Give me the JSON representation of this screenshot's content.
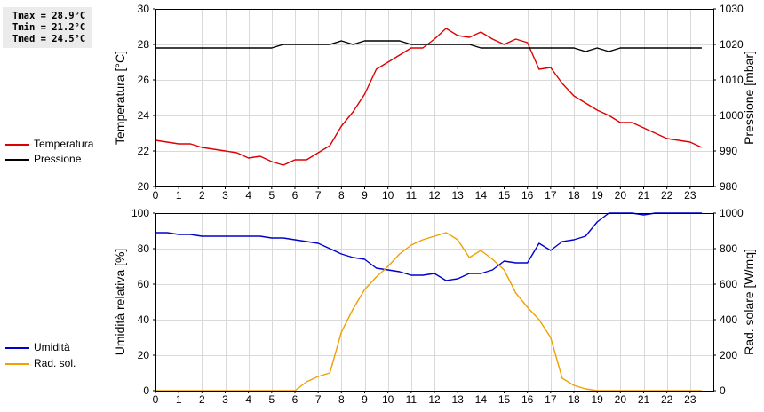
{
  "stats": [
    "Tmax = 28.9°C",
    "Tmin = 21.2°C",
    "Tmed = 24.5°C"
  ],
  "colors": {
    "temperature": "#dd0000",
    "pressure": "#000000",
    "humidity": "#0000cc",
    "radiation": "#f0a000"
  },
  "legend_top": [
    {
      "label": "Temperatura",
      "color": "#dd0000"
    },
    {
      "label": "Pressione",
      "color": "#000000"
    }
  ],
  "legend_bottom": [
    {
      "label": "Umidità",
      "color": "#0000cc"
    },
    {
      "label": "Rad. sol.",
      "color": "#f0a000"
    }
  ],
  "chart_data": [
    {
      "type": "line",
      "ylabel": "Temperatura [°C]",
      "ylabel_right": "Pressione [mbar]",
      "xlim": [
        0,
        24
      ],
      "x_ticks": [
        0,
        1,
        2,
        3,
        4,
        5,
        6,
        7,
        8,
        9,
        10,
        11,
        12,
        13,
        14,
        15,
        16,
        17,
        18,
        19,
        20,
        21,
        22,
        23
      ],
      "ylim": [
        20,
        30
      ],
      "y_ticks": [
        20,
        22,
        24,
        26,
        28,
        30
      ],
      "ylim_right": [
        980,
        1030
      ],
      "y_ticks_right": [
        980,
        990,
        1000,
        1010,
        1020,
        1030
      ],
      "grid": true,
      "series": [
        {
          "name": "Temperatura",
          "axis": "left",
          "color": "#dd0000",
          "x": [
            0,
            1,
            1.5,
            2,
            2.5,
            3,
            3.5,
            4,
            4.5,
            5,
            5.5,
            6,
            6.5,
            7,
            7.5,
            8,
            8.5,
            9,
            9.5,
            10,
            10.5,
            11,
            11.5,
            12,
            12.5,
            13,
            13.5,
            14,
            14.5,
            15,
            15.5,
            16,
            16.5,
            17,
            17.5,
            18,
            18.5,
            19,
            19.5,
            20,
            20.5,
            21,
            21.5,
            22,
            22.5,
            23,
            23.5
          ],
          "y": [
            22.6,
            22.4,
            22.4,
            22.2,
            22.1,
            22.0,
            21.9,
            21.6,
            21.7,
            21.4,
            21.2,
            21.5,
            21.5,
            21.9,
            22.3,
            23.4,
            24.2,
            25.2,
            26.6,
            27.0,
            27.4,
            27.8,
            27.8,
            28.3,
            28.9,
            28.5,
            28.4,
            28.7,
            28.3,
            28.0,
            28.3,
            28.1,
            26.6,
            26.7,
            25.8,
            25.1,
            24.7,
            24.3,
            24.0,
            23.6,
            23.6,
            23.3,
            23.0,
            22.7,
            22.6,
            22.5,
            22.2
          ]
        },
        {
          "name": "Pressione",
          "axis": "right",
          "color": "#000000",
          "x": [
            0,
            1,
            2,
            3,
            4,
            5,
            5.5,
            6,
            7,
            7.5,
            8,
            8.5,
            9,
            10,
            10.5,
            11,
            12,
            13,
            13.5,
            14,
            15,
            16,
            17,
            18,
            18.5,
            19,
            19.5,
            20,
            21,
            22,
            23,
            23.5
          ],
          "y": [
            1019,
            1019,
            1019,
            1019,
            1019,
            1019,
            1020,
            1020,
            1020,
            1020,
            1021,
            1020,
            1021,
            1021,
            1021,
            1020,
            1020,
            1020,
            1020,
            1019,
            1019,
            1019,
            1019,
            1019,
            1018,
            1019,
            1018,
            1019,
            1019,
            1019,
            1019,
            1019
          ]
        }
      ]
    },
    {
      "type": "line",
      "ylabel": "Umidità relativa [%]",
      "ylabel_right": "Rad. solare [W/mq]",
      "xlim": [
        0,
        24
      ],
      "x_ticks": [
        0,
        1,
        2,
        3,
        4,
        5,
        6,
        7,
        8,
        9,
        10,
        11,
        12,
        13,
        14,
        15,
        16,
        17,
        18,
        19,
        20,
        21,
        22,
        23
      ],
      "ylim": [
        0,
        100
      ],
      "y_ticks": [
        0,
        20,
        40,
        60,
        80,
        100
      ],
      "ylim_right": [
        0,
        1000
      ],
      "y_ticks_right": [
        0,
        200,
        400,
        600,
        800,
        1000
      ],
      "grid": true,
      "series": [
        {
          "name": "Umidità",
          "axis": "left",
          "color": "#0000cc",
          "x": [
            0,
            0.5,
            1,
            1.5,
            2,
            3,
            4,
            4.5,
            5,
            5.5,
            6,
            6.5,
            7,
            7.5,
            8,
            8.5,
            9,
            9.5,
            10,
            10.5,
            11,
            11.5,
            12,
            12.5,
            13,
            13.5,
            14,
            14.5,
            15,
            15.5,
            16,
            16.5,
            17,
            17.5,
            18,
            18.5,
            19,
            19.5,
            20,
            20.5,
            21,
            21.5,
            22,
            23,
            23.5
          ],
          "y": [
            89,
            89,
            88,
            88,
            87,
            87,
            87,
            87,
            86,
            86,
            85,
            84,
            83,
            80,
            77,
            75,
            74,
            69,
            68,
            67,
            65,
            65,
            66,
            62,
            63,
            66,
            66,
            68,
            73,
            72,
            72,
            83,
            79,
            84,
            85,
            87,
            95,
            100,
            100,
            100,
            99,
            100,
            100,
            100,
            100
          ]
        },
        {
          "name": "Rad. sol.",
          "axis": "right",
          "color": "#f0a000",
          "x": [
            0,
            1,
            2,
            3,
            4,
            5,
            6,
            6.5,
            7,
            7.5,
            8,
            8.5,
            9,
            9.5,
            10,
            10.5,
            11,
            11.5,
            12,
            12.5,
            13,
            13.5,
            14,
            14.5,
            15,
            15.5,
            16,
            16.5,
            17,
            17.5,
            18,
            18.5,
            19,
            20,
            21,
            22,
            23,
            23.5
          ],
          "y": [
            0,
            0,
            0,
            0,
            0,
            0,
            0,
            50,
            80,
            100,
            330,
            460,
            570,
            640,
            700,
            770,
            820,
            850,
            870,
            890,
            850,
            750,
            790,
            740,
            680,
            550,
            470,
            400,
            300,
            70,
            30,
            10,
            0,
            0,
            0,
            0,
            0,
            0
          ]
        }
      ]
    }
  ]
}
